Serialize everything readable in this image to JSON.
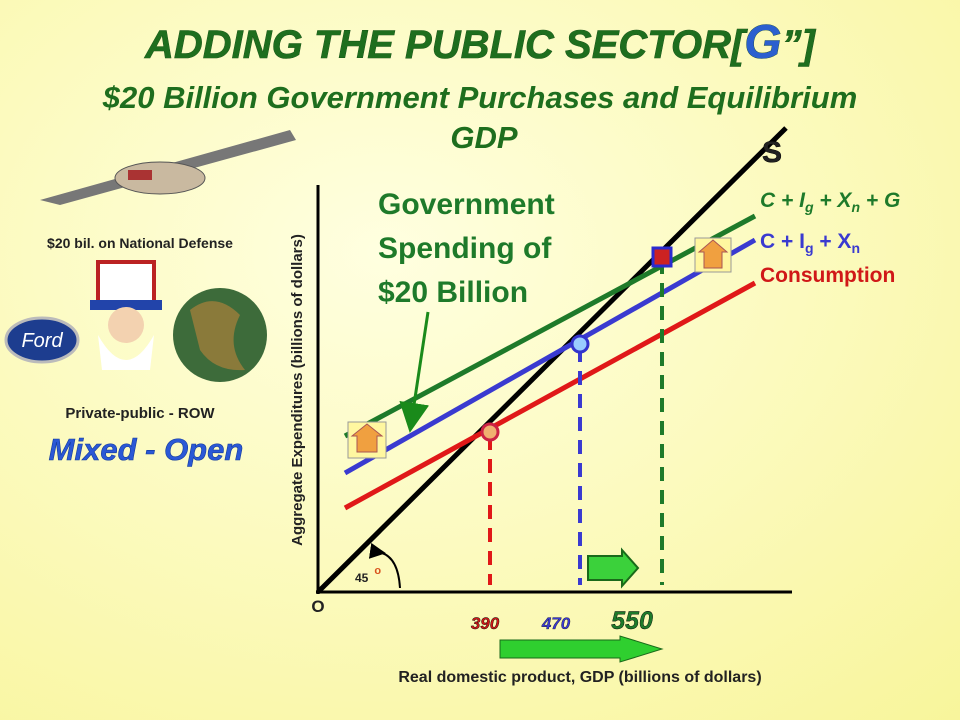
{
  "header": {
    "title_start": "ADDING THE PUBLIC SECTOR[",
    "title_letter": "G",
    "title_end": "”]",
    "subtitle": [
      "$20 Billion Government Purchases and Equilibrium",
      "GDP"
    ]
  },
  "sidebar": {
    "caption": "$20 bil. on National Defense",
    "logo": "Ford",
    "mix": "Private-public - ROW",
    "economy": "Mixed - Open"
  },
  "diagram": {
    "y_label": "Aggregate Expenditures (billions of dollars)",
    "x_label": "Real domestic product, GDP (billions of dollars)",
    "origin": "O",
    "angle": "45",
    "degree": "o",
    "supply": "S",
    "lines": [
      {
        "label": [
          "C + I",
          "g",
          " + X",
          "n",
          " + G"
        ]
      },
      {
        "label": [
          "C + I",
          "g",
          " + X",
          "n"
        ]
      },
      {
        "label": [
          "Consumption"
        ]
      }
    ],
    "annotation": [
      "Government",
      "Spending of",
      "$20 Billion"
    ],
    "gdp_levels": [
      "390",
      "470",
      "550"
    ]
  }
}
